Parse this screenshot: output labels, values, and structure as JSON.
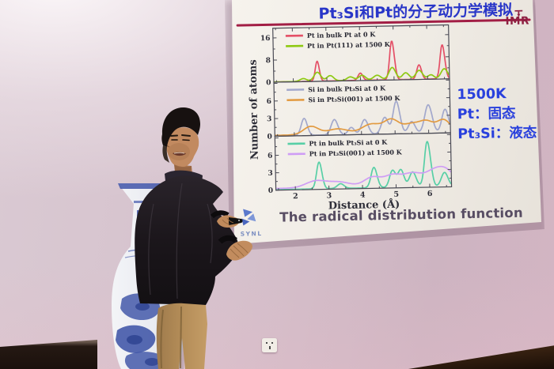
{
  "slide": {
    "title": "Pt₃Si和Pt的分子动力学模拟",
    "logos": {
      "imr": "IMR",
      "synl": "SYNL"
    },
    "caption": "The radical distribution function",
    "annotation": [
      "1500K",
      "Pt：固态",
      "Pt₃Si：液态"
    ]
  },
  "colors": {
    "slide_title": "#2936c8",
    "title_rule": "#a21e45",
    "annotation_text": "#2940dd",
    "caption_text": "#584d63",
    "imr_logo": "#8e2042",
    "synl_logo": "#7d90c2"
  },
  "chart_data": {
    "type": "line",
    "title": "",
    "xlabel": "Distance (Å)",
    "ylabel": "Number of atoms",
    "xlim": [
      1.42,
      6.65
    ],
    "xticks": [
      2,
      3,
      4,
      5,
      6
    ],
    "grid": false,
    "legend_position": "top-left of each panel",
    "peaks_format": "[distance_angstrom, peak_height_atoms, peak_sigma_angstrom]",
    "panels": [
      {
        "yticks": [
          0,
          8,
          16
        ],
        "ymax": 19.5,
        "series": [
          {
            "name": "Pt in bulk Pt at 0 K",
            "color": "#e44f66",
            "base": 0.08,
            "peaks": [
              [
                2.72,
                7.2,
                0.06
              ],
              [
                4.0,
                2.6,
                0.07
              ],
              [
                4.95,
                14.0,
                0.07
              ],
              [
                5.75,
                5.2,
                0.07
              ],
              [
                6.45,
                12.3,
                0.07
              ]
            ]
          },
          {
            "name": "Pt in Pt(111) at 1500 K",
            "color": "#8ec912",
            "base": 0.1,
            "peaks": [
              [
                2.3,
                1.0,
                0.1
              ],
              [
                2.72,
                3.2,
                0.1
              ],
              [
                3.1,
                1.9,
                0.1
              ],
              [
                3.7,
                1.3,
                0.1
              ],
              [
                4.05,
                1.8,
                0.1
              ],
              [
                4.5,
                1.7,
                0.11
              ],
              [
                4.95,
                4.4,
                0.1
              ],
              [
                5.35,
                2.4,
                0.1
              ],
              [
                5.75,
                3.2,
                0.1
              ],
              [
                6.1,
                1.5,
                0.09
              ],
              [
                6.5,
                3.6,
                0.1
              ]
            ]
          }
        ]
      },
      {
        "yticks": [
          0,
          3,
          6
        ],
        "ymax": 9.2,
        "series": [
          {
            "name": "Si in bulk Pt₃Si at 0 K",
            "color": "#a2a8cc",
            "base": 0.05,
            "peaks": [
              [
                2.3,
                2.9,
                0.09
              ],
              [
                3.2,
                2.6,
                0.1
              ],
              [
                3.7,
                1.2,
                0.09
              ],
              [
                4.1,
                2.5,
                0.1
              ],
              [
                4.7,
                2.8,
                0.1
              ],
              [
                5.05,
                5.5,
                0.1
              ],
              [
                5.5,
                2.0,
                0.1
              ],
              [
                6.0,
                4.8,
                0.11
              ],
              [
                6.5,
                4.0,
                0.1
              ]
            ]
          },
          {
            "name": "Si in Pt₃Si(001) at 1500 K",
            "color": "#e29a40",
            "base": 0.15,
            "peaks": [
              [
                2.5,
                1.4,
                0.22
              ],
              [
                3.3,
                0.9,
                0.3
              ],
              [
                4.3,
                1.6,
                0.28
              ],
              [
                4.9,
                2.2,
                0.22
              ],
              [
                5.5,
                1.5,
                0.25
              ],
              [
                5.95,
                1.7,
                0.2
              ],
              [
                6.45,
                2.1,
                0.2
              ]
            ]
          }
        ]
      },
      {
        "yticks": [
          0,
          3,
          6
        ],
        "ymax": 9.3,
        "series": [
          {
            "name": "Pt in bulk Pt₃Si at 0 K",
            "color": "#57cfa6",
            "base": 0.1,
            "peaks": [
              [
                2.72,
                4.6,
                0.08
              ],
              [
                3.35,
                0.8,
                0.1
              ],
              [
                4.35,
                3.5,
                0.09
              ],
              [
                4.9,
                2.9,
                0.09
              ],
              [
                5.15,
                3.0,
                0.09
              ],
              [
                5.5,
                2.6,
                0.1
              ],
              [
                5.95,
                7.8,
                0.09
              ],
              [
                6.45,
                2.4,
                0.1
              ]
            ]
          },
          {
            "name": "Pt in Pt₃Si(001) at 1500 K",
            "color": "#cf9df5",
            "base": 0.3,
            "peaks": [
              [
                2.6,
                1.1,
                0.3
              ],
              [
                3.3,
                0.9,
                0.35
              ],
              [
                4.3,
                1.6,
                0.25
              ],
              [
                4.9,
                1.8,
                0.25
              ],
              [
                5.5,
                2.1,
                0.28
              ],
              [
                6.1,
                2.0,
                0.25
              ],
              [
                6.5,
                2.4,
                0.25
              ]
            ]
          }
        ]
      }
    ]
  }
}
